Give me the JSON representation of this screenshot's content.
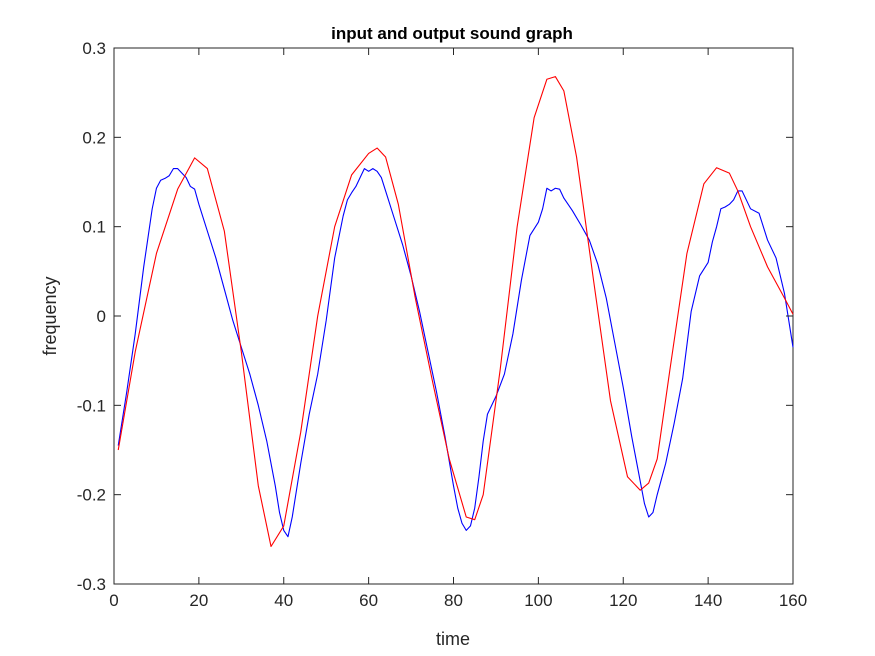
{
  "chart_data": {
    "type": "line",
    "title": "input and output sound graph",
    "xlabel": "time",
    "ylabel": "frequency",
    "xlim": [
      0,
      160
    ],
    "ylim": [
      -0.3,
      0.3
    ],
    "xticks": [
      0,
      20,
      40,
      60,
      80,
      100,
      120,
      140,
      160
    ],
    "xtick_labels": [
      "0",
      "20",
      "40",
      "60",
      "80",
      "100",
      "120",
      "140",
      "160"
    ],
    "yticks": [
      -0.3,
      -0.2,
      -0.1,
      0,
      0.1,
      0.2,
      0.3
    ],
    "ytick_labels": [
      "-0.3",
      "-0.2",
      "-0.1",
      "0",
      "0.1",
      "0.2",
      "0.3"
    ],
    "grid": false,
    "box": true,
    "series": [
      {
        "color": "#0000ff",
        "x": [
          1,
          3,
          5,
          7,
          9,
          10,
          11,
          12,
          13,
          14,
          15,
          16,
          17,
          18,
          19,
          20,
          22,
          24,
          26,
          28,
          30,
          32,
          34,
          36,
          38,
          39,
          40,
          41,
          42,
          44,
          46,
          48,
          50,
          52,
          54,
          55,
          56,
          57,
          58,
          59,
          60,
          61,
          62,
          63,
          64,
          66,
          68,
          70,
          72,
          74,
          76,
          78,
          80,
          81,
          82,
          83,
          84,
          85,
          86,
          87,
          88,
          90,
          92,
          94,
          96,
          98,
          100,
          101,
          102,
          103,
          104,
          105,
          106,
          108,
          110,
          112,
          114,
          116,
          118,
          120,
          122,
          124,
          125,
          126,
          127,
          128,
          130,
          132,
          134,
          136,
          138,
          140,
          141,
          142,
          143,
          144,
          145,
          146,
          147,
          148,
          150,
          152,
          154,
          156,
          158,
          160
        ],
        "y": [
          -0.145,
          -0.085,
          -0.02,
          0.055,
          0.12,
          0.143,
          0.152,
          0.154,
          0.157,
          0.165,
          0.165,
          0.16,
          0.155,
          0.145,
          0.142,
          0.125,
          0.095,
          0.065,
          0.03,
          -0.005,
          -0.035,
          -0.065,
          -0.1,
          -0.14,
          -0.19,
          -0.22,
          -0.24,
          -0.247,
          -0.225,
          -0.165,
          -0.11,
          -0.065,
          -0.005,
          0.065,
          0.112,
          0.13,
          0.138,
          0.145,
          0.155,
          0.165,
          0.162,
          0.165,
          0.162,
          0.155,
          0.14,
          0.11,
          0.08,
          0.045,
          0.005,
          -0.04,
          -0.085,
          -0.135,
          -0.19,
          -0.215,
          -0.232,
          -0.24,
          -0.235,
          -0.215,
          -0.18,
          -0.14,
          -0.11,
          -0.09,
          -0.065,
          -0.02,
          0.04,
          0.09,
          0.105,
          0.12,
          0.143,
          0.14,
          0.143,
          0.142,
          0.132,
          0.118,
          0.102,
          0.085,
          0.058,
          0.02,
          -0.03,
          -0.08,
          -0.135,
          -0.185,
          -0.21,
          -0.225,
          -0.22,
          -0.2,
          -0.165,
          -0.12,
          -0.07,
          0.005,
          0.045,
          0.06,
          0.083,
          0.1,
          0.12,
          0.122,
          0.125,
          0.13,
          0.14,
          0.14,
          0.12,
          0.115,
          0.085,
          0.065,
          0.025,
          -0.035
        ]
      },
      {
        "color": "#ff0000",
        "x": [
          1,
          5,
          10,
          15,
          19,
          22,
          26,
          30,
          34,
          37,
          40,
          44,
          48,
          52,
          56,
          60,
          62,
          64,
          67,
          71,
          75,
          79,
          83,
          85,
          87,
          91,
          95,
          99,
          102,
          104,
          106,
          109,
          113,
          117,
          121,
          124,
          126,
          128,
          131,
          135,
          139,
          142,
          145,
          147,
          150,
          154,
          158,
          160
        ],
        "y": [
          -0.15,
          -0.04,
          0.07,
          0.142,
          0.177,
          0.165,
          0.095,
          -0.04,
          -0.19,
          -0.258,
          -0.235,
          -0.13,
          0.0,
          0.1,
          0.158,
          0.182,
          0.188,
          0.178,
          0.125,
          0.02,
          -0.072,
          -0.16,
          -0.225,
          -0.228,
          -0.2,
          -0.06,
          0.1,
          0.222,
          0.265,
          0.268,
          0.252,
          0.178,
          0.04,
          -0.095,
          -0.18,
          -0.195,
          -0.187,
          -0.16,
          -0.06,
          0.07,
          0.148,
          0.166,
          0.16,
          0.14,
          0.1,
          0.055,
          0.02,
          0.002
        ]
      }
    ]
  }
}
